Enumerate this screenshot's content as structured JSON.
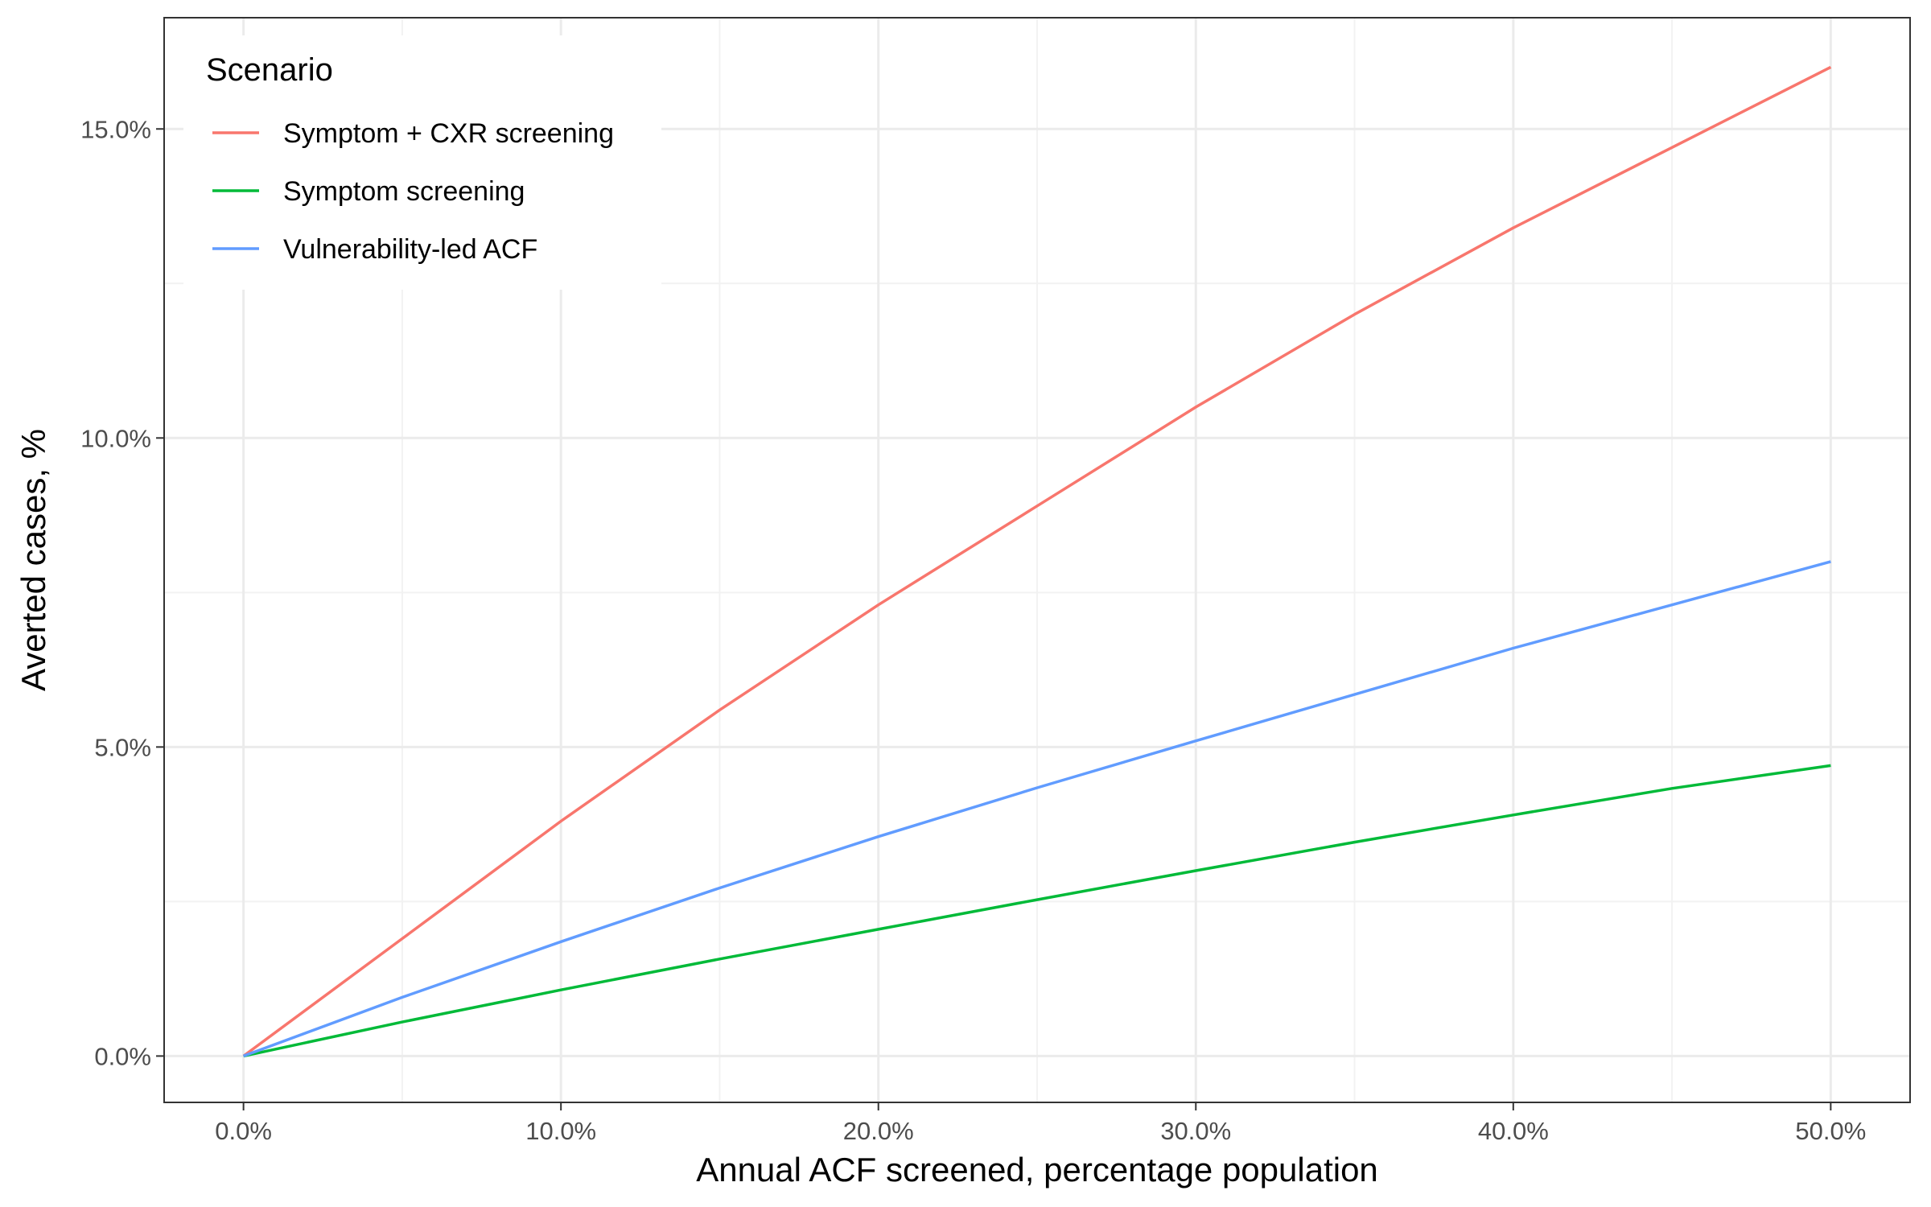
{
  "chart_data": {
    "type": "line",
    "xlabel": "Annual ACF screened, percentage population",
    "ylabel": "Averted cases, %",
    "xlim": [
      -0.025,
      0.525
    ],
    "ylim": [
      -0.0075,
      0.168
    ],
    "x_ticks": [
      0.0,
      0.1,
      0.2,
      0.3,
      0.4,
      0.5
    ],
    "x_tick_labels": [
      "0.0%",
      "10.0%",
      "20.0%",
      "30.0%",
      "40.0%",
      "50.0%"
    ],
    "y_ticks": [
      0.0,
      0.05,
      0.1,
      0.15
    ],
    "y_tick_labels": [
      "0.0%",
      "5.0%",
      "10.0%",
      "15.0%"
    ],
    "grid": true,
    "legend": {
      "title": "Scenario",
      "position": "top-left"
    },
    "series": [
      {
        "name": "Symptom + CXR screening",
        "color": "#F8766D",
        "x": [
          0.0,
          0.05,
          0.1,
          0.15,
          0.2,
          0.25,
          0.3,
          0.35,
          0.4,
          0.45,
          0.5
        ],
        "y": [
          0.0,
          0.019,
          0.038,
          0.056,
          0.073,
          0.089,
          0.105,
          0.12,
          0.134,
          0.147,
          0.16
        ]
      },
      {
        "name": "Symptom screening",
        "color": "#00BA38",
        "x": [
          0.0,
          0.05,
          0.1,
          0.15,
          0.2,
          0.25,
          0.3,
          0.35,
          0.4,
          0.45,
          0.5
        ],
        "y": [
          0.0,
          0.0055,
          0.0107,
          0.0157,
          0.0205,
          0.0253,
          0.03,
          0.0346,
          0.039,
          0.0433,
          0.047
        ]
      },
      {
        "name": "Vulnerability-led ACF",
        "color": "#619CFF",
        "x": [
          0.0,
          0.05,
          0.1,
          0.15,
          0.2,
          0.25,
          0.3,
          0.35,
          0.4,
          0.45,
          0.5
        ],
        "y": [
          0.0,
          0.0095,
          0.0185,
          0.0272,
          0.0355,
          0.0434,
          0.051,
          0.0585,
          0.066,
          0.073,
          0.08
        ]
      }
    ]
  }
}
